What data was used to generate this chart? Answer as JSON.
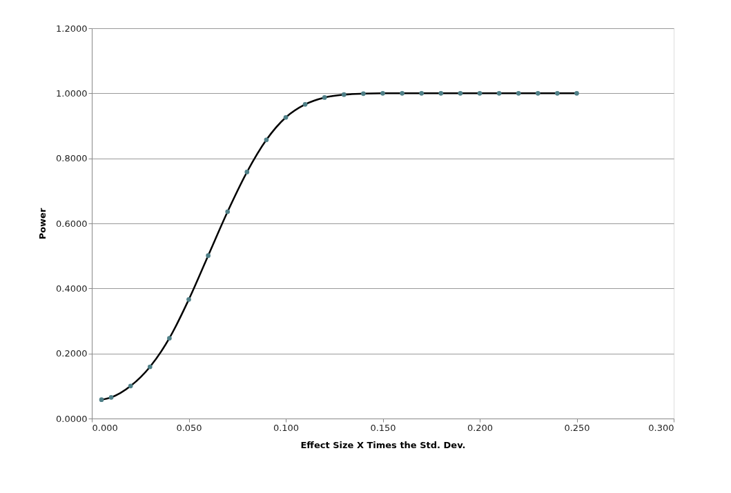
{
  "chart_data": {
    "type": "scatter",
    "xlabel": "Effect Size  X Times the Std. Dev.",
    "ylabel": "Power",
    "x": [
      0.005,
      0.01,
      0.02,
      0.03,
      0.04,
      0.05,
      0.06,
      0.07,
      0.08,
      0.09,
      0.1,
      0.11,
      0.12,
      0.13,
      0.14,
      0.15,
      0.16,
      0.17,
      0.18,
      0.19,
      0.2,
      0.21,
      0.22,
      0.23,
      0.24,
      0.25
    ],
    "series": [
      {
        "color": "#4f8088",
        "marker": "circle",
        "values": [
          0.058,
          0.065,
          0.1,
          0.159,
          0.247,
          0.366,
          0.501,
          0.636,
          0.758,
          0.857,
          0.926,
          0.966,
          0.987,
          0.996,
          0.999,
          1.0,
          1.0,
          1.0,
          1.0,
          1.0,
          1.0,
          1.0,
          1.0,
          1.0,
          1.0,
          1.0
        ]
      },
      {
        "type": "line",
        "color": "#000000",
        "marker": "none",
        "line_style": "solid",
        "values": [
          0.058,
          0.065,
          0.1,
          0.159,
          0.247,
          0.366,
          0.501,
          0.636,
          0.758,
          0.857,
          0.926,
          0.966,
          0.987,
          0.996,
          0.999,
          1.0,
          1.0,
          1.0,
          1.0,
          1.0,
          1.0,
          1.0,
          1.0,
          1.0,
          1.0,
          1.0
        ]
      }
    ],
    "xlim": [
      0,
      0.3
    ],
    "ylim": [
      0,
      1.2
    ],
    "xticks": [
      {
        "value": 0,
        "label": "0.000"
      },
      {
        "value": 0.05,
        "label": "0.050"
      },
      {
        "value": 0.1,
        "label": "0.100"
      },
      {
        "value": 0.15,
        "label": "0.150"
      },
      {
        "value": 0.2,
        "label": "0.200"
      },
      {
        "value": 0.25,
        "label": "0.250"
      },
      {
        "value": 0.3,
        "label": "0.300"
      }
    ],
    "yticks": [
      {
        "value": 0,
        "label": "0.0000"
      },
      {
        "value": 0.2,
        "label": "0.2000"
      },
      {
        "value": 0.4,
        "label": "0.4000"
      },
      {
        "value": 0.6,
        "label": "0.6000"
      },
      {
        "value": 0.8,
        "label": "0.8000"
      },
      {
        "value": 1.0,
        "label": "1.0000"
      },
      {
        "value": 1.2,
        "label": "1.2000"
      }
    ],
    "grid": "y"
  }
}
